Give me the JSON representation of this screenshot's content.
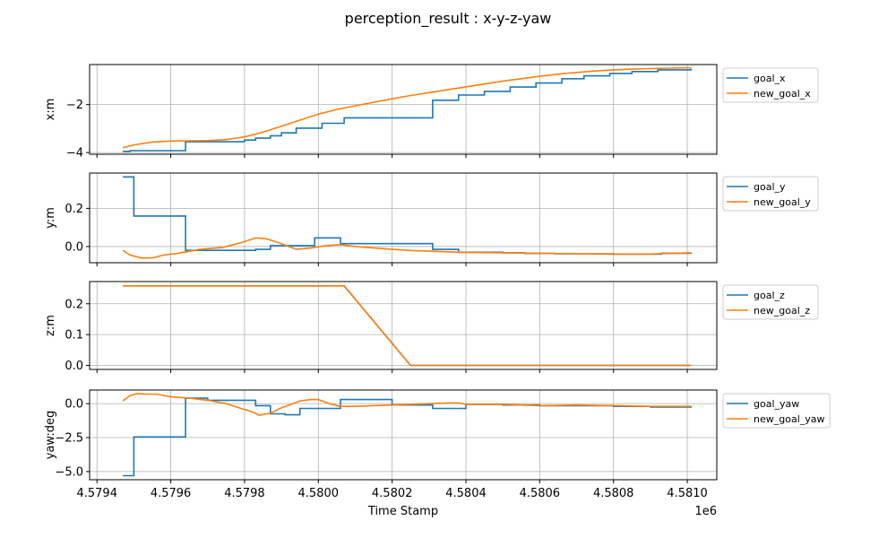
{
  "figure": {
    "title": "perception_result : x-y-z-yaw",
    "xlabel": "Time Stamp",
    "x_offset_label": "1e6"
  },
  "chart_data": [
    {
      "type": "line",
      "ylabel": "x:m",
      "xlim": [
        4579380,
        4581080
      ],
      "ylim": [
        -4.07,
        -0.33
      ],
      "yticks": [
        -4,
        -2
      ],
      "ytick_labels": [
        "−4",
        "−2"
      ],
      "grid": true,
      "legend_position": "top-right",
      "series": [
        {
          "name": "goal_x",
          "color": "#1f77b4",
          "step": true,
          "x": [
            4579470,
            4579490,
            4579630,
            4579640,
            4579800,
            4579830,
            4579870,
            4579900,
            4579940,
            4580010,
            4580070,
            4580310,
            4580380,
            4580450,
            4580520,
            4580590,
            4580660,
            4580720,
            4580790,
            4580850,
            4580920,
            4581010
          ],
          "y": [
            -3.95,
            -3.92,
            -3.92,
            -3.55,
            -3.48,
            -3.4,
            -3.3,
            -3.18,
            -2.98,
            -2.78,
            -2.55,
            -1.82,
            -1.6,
            -1.45,
            -1.27,
            -1.1,
            -0.92,
            -0.8,
            -0.7,
            -0.62,
            -0.55,
            -0.5
          ]
        },
        {
          "name": "new_goal_x",
          "color": "#ff7f0e",
          "step": false,
          "x": [
            4579470,
            4579500,
            4579550,
            4579600,
            4579650,
            4579700,
            4579750,
            4579800,
            4579850,
            4579900,
            4579950,
            4580000,
            4580050,
            4580100,
            4580150,
            4580200,
            4580250,
            4580300,
            4580350,
            4580400,
            4580450,
            4580500,
            4580550,
            4580600,
            4580650,
            4580700,
            4580750,
            4580800,
            4580850,
            4580900,
            4580950,
            4581010
          ],
          "y": [
            -3.8,
            -3.68,
            -3.56,
            -3.52,
            -3.51,
            -3.5,
            -3.46,
            -3.35,
            -3.15,
            -2.9,
            -2.65,
            -2.4,
            -2.2,
            -2.05,
            -1.9,
            -1.76,
            -1.62,
            -1.5,
            -1.38,
            -1.26,
            -1.14,
            -1.02,
            -0.92,
            -0.82,
            -0.73,
            -0.66,
            -0.6,
            -0.55,
            -0.52,
            -0.5,
            -0.48,
            -0.46
          ]
        }
      ]
    },
    {
      "type": "line",
      "ylabel": "y:m",
      "xlim": [
        4579380,
        4581080
      ],
      "ylim": [
        -0.085,
        0.385
      ],
      "yticks": [
        0.0,
        0.2
      ],
      "ytick_labels": [
        "0.0",
        "0.2"
      ],
      "grid": true,
      "legend_position": "top-right",
      "series": [
        {
          "name": "goal_y",
          "color": "#1f77b4",
          "step": true,
          "x": [
            4579470,
            4579500,
            4579630,
            4579640,
            4579830,
            4579870,
            4579990,
            4580060,
            4580310,
            4580380,
            4580500,
            4580560,
            4580640,
            4580720,
            4580800,
            4580860,
            4580930,
            4581010
          ],
          "y": [
            0.365,
            0.16,
            0.16,
            -0.02,
            -0.015,
            0.005,
            0.045,
            0.015,
            -0.015,
            -0.03,
            -0.033,
            -0.036,
            -0.038,
            -0.038,
            -0.04,
            -0.04,
            -0.035,
            -0.033
          ]
        },
        {
          "name": "new_goal_y",
          "color": "#ff7f0e",
          "step": false,
          "x": [
            4579470,
            4579490,
            4579520,
            4579550,
            4579580,
            4579620,
            4579680,
            4579740,
            4579790,
            4579830,
            4579860,
            4579900,
            4579940,
            4579980,
            4580020,
            4580060,
            4580100,
            4580150,
            4580200,
            4580260,
            4580310,
            4580380,
            4580450,
            4580520,
            4580600,
            4580700,
            4580800,
            4580880,
            4580940,
            4581010
          ],
          "y": [
            -0.02,
            -0.045,
            -0.06,
            -0.06,
            -0.045,
            -0.035,
            -0.015,
            -0.005,
            0.02,
            0.045,
            0.04,
            0.015,
            -0.015,
            -0.008,
            0.005,
            0.01,
            0.0,
            -0.008,
            -0.015,
            -0.022,
            -0.025,
            -0.03,
            -0.032,
            -0.034,
            -0.036,
            -0.038,
            -0.04,
            -0.04,
            -0.037,
            -0.033
          ]
        }
      ]
    },
    {
      "type": "line",
      "ylabel": "z:m",
      "xlim": [
        4579380,
        4581080
      ],
      "ylim": [
        -0.013,
        0.272
      ],
      "yticks": [
        0.0,
        0.1,
        0.2
      ],
      "ytick_labels": [
        "0.0",
        "0.1",
        "0.2"
      ],
      "grid": true,
      "legend_position": "top-right",
      "series": [
        {
          "name": "goal_z",
          "color": "#1f77b4",
          "step": false,
          "x": [
            4579470,
            4580070,
            4580250,
            4581010
          ],
          "y": [
            0.258,
            0.258,
            0.0,
            0.0
          ]
        },
        {
          "name": "new_goal_z",
          "color": "#ff7f0e",
          "step": false,
          "x": [
            4579470,
            4580070,
            4580250,
            4581010
          ],
          "y": [
            0.258,
            0.258,
            0.0,
            0.0
          ]
        }
      ]
    },
    {
      "type": "line",
      "ylabel": "yaw:deg",
      "xlim": [
        4579380,
        4581080
      ],
      "ylim": [
        -5.6,
        1.0
      ],
      "yticks": [
        -5.0,
        -2.5,
        0.0
      ],
      "ytick_labels": [
        "−5.0",
        "−2.5",
        "0.0"
      ],
      "grid": true,
      "legend_position": "top-right",
      "series": [
        {
          "name": "goal_yaw",
          "color": "#1f77b4",
          "step": true,
          "x": [
            4579470,
            4579500,
            4579630,
            4579640,
            4579700,
            4579830,
            4579870,
            4579910,
            4579950,
            4580060,
            4580200,
            4580310,
            4580400,
            4580500,
            4580600,
            4580700,
            4580800,
            4580900,
            4581010
          ],
          "y": [
            -5.3,
            -2.45,
            -2.45,
            0.4,
            0.25,
            -0.15,
            -0.75,
            -0.82,
            -0.35,
            0.3,
            -0.1,
            -0.35,
            -0.05,
            -0.1,
            -0.15,
            -0.15,
            -0.2,
            -0.25,
            -0.3
          ]
        },
        {
          "name": "new_goal_yaw",
          "color": "#ff7f0e",
          "step": false,
          "x": [
            4579470,
            4579490,
            4579510,
            4579530,
            4579560,
            4579600,
            4579650,
            4579700,
            4579750,
            4579790,
            4579820,
            4579840,
            4579870,
            4579900,
            4579930,
            4579950,
            4579980,
            4580000,
            4580030,
            4580060,
            4580100,
            4580150,
            4580200,
            4580250,
            4580300,
            4580350,
            4580380,
            4580400,
            4580500,
            4580600,
            4580700,
            4580800,
            4580900,
            4581010
          ],
          "y": [
            0.2,
            0.6,
            0.75,
            0.7,
            0.7,
            0.5,
            0.4,
            0.25,
            0.0,
            -0.35,
            -0.6,
            -0.85,
            -0.7,
            -0.3,
            0.0,
            0.2,
            0.3,
            0.3,
            0.0,
            -0.2,
            -0.2,
            -0.15,
            -0.1,
            -0.05,
            0.0,
            0.05,
            0.05,
            -0.05,
            -0.05,
            -0.15,
            -0.1,
            -0.15,
            -0.2,
            -0.2
          ]
        }
      ]
    }
  ]
}
